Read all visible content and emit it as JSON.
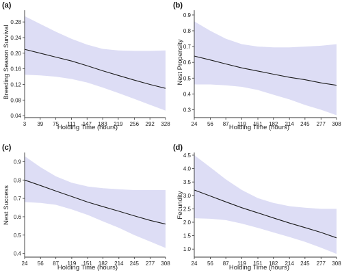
{
  "colors": {
    "band": "#ddddf5",
    "line": "#1a1a1a",
    "axis": "#333333"
  },
  "chart_data": [
    {
      "type": "line",
      "panel_label": "(a)",
      "xlabel": "Holding Time (hours)",
      "ylabel": "Breeding Season Survival",
      "x_ticks": [
        3,
        39,
        75,
        111,
        147,
        183,
        219,
        256,
        292,
        328
      ],
      "y_ticks": [
        0.04,
        0.08,
        0.12,
        0.16,
        0.2,
        0.24,
        0.28
      ],
      "y_tick_labels": [
        "0.04",
        "0.08",
        "0.12",
        "0.16",
        "0.20",
        "0.24",
        "0.28"
      ],
      "xlim": [
        3,
        328
      ],
      "ylim": [
        0.035,
        0.31
      ],
      "x": [
        3,
        39,
        75,
        111,
        147,
        183,
        219,
        256,
        292,
        328
      ],
      "series": [
        {
          "values": [
            0.21,
            0.2,
            0.19,
            0.18,
            0.168,
            0.155,
            0.143,
            0.131,
            0.12,
            0.11
          ],
          "lower": [
            0.145,
            0.143,
            0.14,
            0.134,
            0.125,
            0.112,
            0.098,
            0.083,
            0.068,
            0.053
          ],
          "upper": [
            0.295,
            0.275,
            0.255,
            0.237,
            0.222,
            0.211,
            0.207,
            0.206,
            0.206,
            0.207
          ]
        }
      ]
    },
    {
      "type": "line",
      "panel_label": "(b)",
      "xlabel": "Holding Time (hours)",
      "ylabel": "Nest Propensity",
      "x_ticks": [
        24,
        56,
        87,
        119,
        151,
        182,
        214,
        245,
        277,
        308
      ],
      "y_ticks": [
        0.3,
        0.4,
        0.5,
        0.6,
        0.7,
        0.8,
        0.9
      ],
      "y_tick_labels": [
        "0.3",
        "0.4",
        "0.5",
        "0.6",
        "0.7",
        "0.8",
        "0.9"
      ],
      "xlim": [
        24,
        308
      ],
      "ylim": [
        0.25,
        0.93
      ],
      "x": [
        24,
        56,
        87,
        119,
        151,
        182,
        214,
        245,
        277,
        308
      ],
      "series": [
        {
          "values": [
            0.64,
            0.615,
            0.59,
            0.565,
            0.545,
            0.525,
            0.505,
            0.49,
            0.47,
            0.455
          ],
          "lower": [
            0.46,
            0.46,
            0.455,
            0.445,
            0.425,
            0.395,
            0.365,
            0.33,
            0.3,
            0.265
          ],
          "upper": [
            0.86,
            0.8,
            0.75,
            0.715,
            0.7,
            0.695,
            0.695,
            0.7,
            0.705,
            0.715
          ]
        }
      ]
    },
    {
      "type": "line",
      "panel_label": "(c)",
      "xlabel": "Holding Time (hours)",
      "ylabel": "Nest Success",
      "x_ticks": [
        24,
        56,
        87,
        119,
        151,
        182,
        214,
        245,
        277,
        308
      ],
      "y_ticks": [
        0.4,
        0.5,
        0.6,
        0.7,
        0.8,
        0.9
      ],
      "y_tick_labels": [
        "0.4",
        "0.5",
        "0.6",
        "0.7",
        "0.8",
        "0.9"
      ],
      "xlim": [
        24,
        308
      ],
      "ylim": [
        0.38,
        0.95
      ],
      "x": [
        24,
        56,
        87,
        119,
        151,
        182,
        214,
        245,
        277,
        308
      ],
      "series": [
        {
          "values": [
            0.8,
            0.77,
            0.74,
            0.71,
            0.68,
            0.655,
            0.63,
            0.605,
            0.58,
            0.56
          ],
          "lower": [
            0.68,
            0.675,
            0.665,
            0.64,
            0.61,
            0.575,
            0.54,
            0.5,
            0.465,
            0.43
          ],
          "upper": [
            0.93,
            0.87,
            0.82,
            0.785,
            0.765,
            0.755,
            0.75,
            0.745,
            0.745,
            0.745
          ]
        }
      ]
    },
    {
      "type": "line",
      "panel_label": "(d)",
      "xlabel": "Holding Time (hours)",
      "ylabel": "Fecundity",
      "x_ticks": [
        24,
        56,
        87,
        119,
        151,
        182,
        214,
        245,
        277,
        308
      ],
      "y_ticks": [
        1.0,
        1.5,
        2.0,
        2.5,
        3.0,
        3.5,
        4.0,
        4.5
      ],
      "y_tick_labels": [
        "1.0",
        "1.5",
        "2.0",
        "2.5",
        "3.0",
        "3.5",
        "4.0",
        "4.5"
      ],
      "xlim": [
        24,
        308
      ],
      "ylim": [
        0.7,
        4.6
      ],
      "x": [
        24,
        56,
        87,
        119,
        151,
        182,
        214,
        245,
        277,
        308
      ],
      "series": [
        {
          "values": [
            3.2,
            2.98,
            2.76,
            2.54,
            2.35,
            2.16,
            1.97,
            1.8,
            1.62,
            1.42
          ],
          "lower": [
            2.15,
            2.13,
            2.08,
            1.95,
            1.79,
            1.62,
            1.45,
            1.27,
            1.05,
            0.82
          ],
          "upper": [
            4.5,
            4.05,
            3.6,
            3.2,
            2.9,
            2.72,
            2.6,
            2.54,
            2.5,
            2.5
          ]
        }
      ]
    }
  ]
}
